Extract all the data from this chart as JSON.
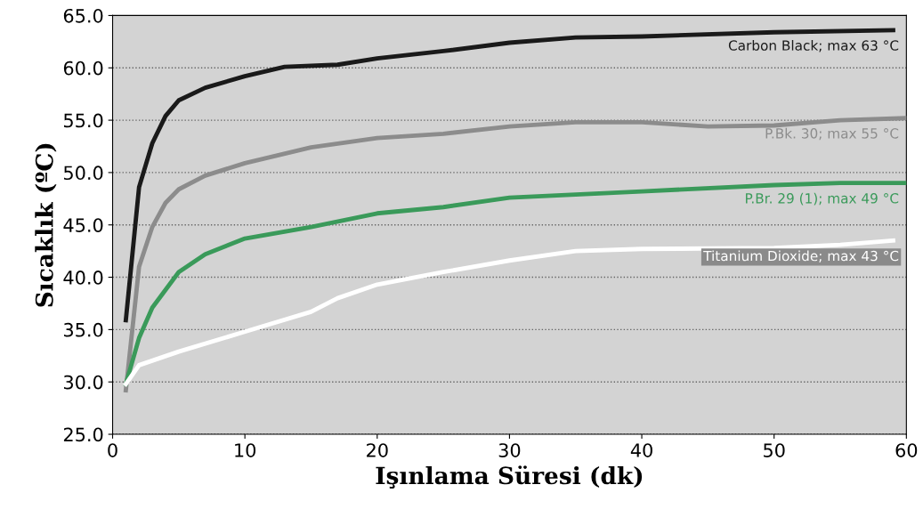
{
  "chart_data": {
    "type": "line",
    "xlabel": "Işınlama Süresi (dk)",
    "ylabel": "Sıcaklık (ºC)",
    "xlim": [
      0,
      60
    ],
    "xticks": [
      0,
      10,
      20,
      30,
      40,
      50,
      60
    ],
    "ylim": [
      25,
      65
    ],
    "yticks": [
      {
        "value": 25,
        "label": "25.0"
      },
      {
        "value": 30,
        "label": "30.0"
      },
      {
        "value": 35,
        "label": "35.0"
      },
      {
        "value": 40,
        "label": "40.0"
      },
      {
        "value": 45,
        "label": "45.0"
      },
      {
        "value": 50,
        "label": "50.0"
      },
      {
        "value": 55,
        "label": "55.0"
      },
      {
        "value": 60,
        "label": "60.0"
      },
      {
        "value": 65,
        "label": "65.0"
      }
    ],
    "grid": "y",
    "marker": "none",
    "line_style": "solid",
    "series": [
      {
        "name": "Carbon Black; max 63 °C",
        "color": "#1a1a1a",
        "x": [
          1,
          2,
          3,
          4,
          5,
          7,
          10,
          13,
          17,
          20,
          25,
          30,
          35,
          40,
          50,
          59
        ],
        "values": [
          35.9,
          48.6,
          52.8,
          55.4,
          56.9,
          58.1,
          59.2,
          60.1,
          60.3,
          60.9,
          61.6,
          62.4,
          62.9,
          63.0,
          63.4,
          63.6
        ]
      },
      {
        "name": "P.Bk. 30; max 55 °C",
        "color": "#8c8c8c",
        "x": [
          1,
          2,
          3,
          4,
          5,
          7,
          10,
          15,
          20,
          25,
          30,
          35,
          40,
          45,
          50,
          55,
          60
        ],
        "values": [
          29.2,
          41.0,
          44.8,
          47.1,
          48.4,
          49.7,
          50.9,
          52.4,
          53.3,
          53.7,
          54.4,
          54.8,
          54.8,
          54.4,
          54.5,
          55.0,
          55.2
        ]
      },
      {
        "name": "P.Br. 29 (1); max 49 °C",
        "color": "#3a9a5a",
        "x": [
          1,
          2,
          3,
          5,
          7,
          10,
          15,
          20,
          25,
          30,
          40,
          50,
          55,
          60
        ],
        "values": [
          29.8,
          34.2,
          37.1,
          40.5,
          42.2,
          43.7,
          44.8,
          46.1,
          46.7,
          47.6,
          48.2,
          48.8,
          49.0,
          49.0
        ]
      },
      {
        "name": "Titanium Dioxide; max 43 °C",
        "color": "#ffffff",
        "x": [
          1,
          2,
          5,
          10,
          15,
          17,
          20,
          25,
          30,
          35,
          40,
          50,
          55,
          59
        ],
        "values": [
          29.8,
          31.6,
          32.9,
          34.8,
          36.7,
          38.0,
          39.3,
          40.5,
          41.6,
          42.5,
          42.7,
          42.8,
          43.1,
          43.5
        ]
      }
    ]
  }
}
